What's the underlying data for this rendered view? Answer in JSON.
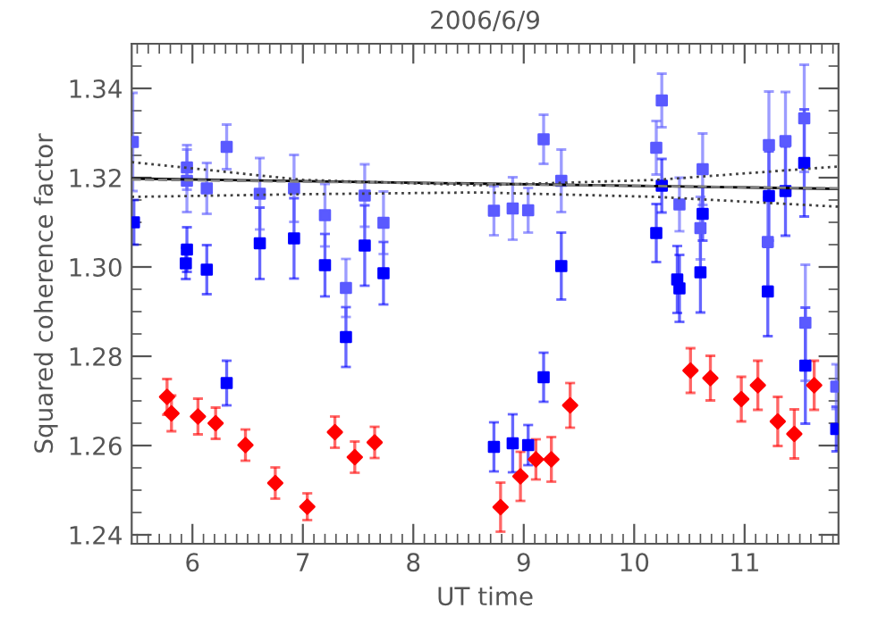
{
  "chart_data": {
    "type": "scatter",
    "title": "2006/6/9",
    "xlabel": "UT time",
    "ylabel": "Squared coherence factor",
    "xlim": [
      5.45,
      11.85
    ],
    "ylim": [
      1.238,
      1.35
    ],
    "xticks": [
      6,
      7,
      8,
      9,
      10,
      11
    ],
    "yticks": [
      {
        "value": 1.24,
        "label": "1.24"
      },
      {
        "value": 1.26,
        "label": "1.26"
      },
      {
        "value": 1.28,
        "label": "1.28"
      },
      {
        "value": 1.3,
        "label": "1.30"
      },
      {
        "value": 1.32,
        "label": "1.32"
      },
      {
        "value": 1.34,
        "label": "1.34"
      }
    ],
    "grid": false,
    "series": [
      {
        "marker": "square",
        "color": "#0000ff",
        "x": [
          5.47,
          5.94,
          5.95,
          6.13,
          6.31,
          6.61,
          6.92,
          7.2,
          7.39,
          7.56,
          7.73,
          8.73,
          8.9,
          9.04,
          9.18,
          9.34,
          10.2,
          10.25,
          10.39,
          10.41,
          10.6,
          10.62,
          11.21,
          11.22,
          11.37,
          11.54,
          11.55,
          11.83
        ],
        "values": [
          1.31,
          1.3008,
          1.3039,
          1.2994,
          1.274,
          1.3053,
          1.3064,
          1.3004,
          1.2843,
          1.3048,
          1.2986,
          1.2597,
          1.2605,
          1.2601,
          1.2753,
          1.3002,
          1.3076,
          1.3182,
          1.2972,
          1.2952,
          1.2988,
          1.3119,
          1.2945,
          1.3159,
          1.317,
          1.3233,
          1.2779,
          1.2637
        ],
        "errors": [
          0.005,
          0.0035,
          0.005,
          0.0055,
          0.005,
          0.008,
          0.009,
          0.007,
          0.0067,
          0.009,
          0.007,
          0.0055,
          0.0065,
          0.0045,
          0.0055,
          0.0075,
          0.0065,
          0.006,
          0.0075,
          0.0075,
          0.009,
          0.006,
          0.01,
          0.01,
          0.01,
          0.012,
          0.013,
          0.005
        ]
      },
      {
        "marker": "square",
        "color": "#5a5aff",
        "x": [
          5.46,
          5.95,
          5.95,
          6.13,
          6.31,
          6.61,
          6.92,
          7.2,
          7.39,
          7.56,
          7.73,
          8.73,
          8.9,
          9.04,
          9.18,
          9.34,
          10.2,
          10.25,
          10.41,
          10.6,
          10.62,
          11.21,
          11.22,
          11.37,
          11.54,
          11.55,
          11.83
        ],
        "values": [
          1.328,
          1.3223,
          1.3193,
          1.3176,
          1.3269,
          1.3164,
          1.3176,
          1.3116,
          1.2953,
          1.316,
          1.3099,
          1.3126,
          1.3131,
          1.3127,
          1.3286,
          1.3193,
          1.3267,
          1.3373,
          1.314,
          1.3087,
          1.3219,
          1.3056,
          1.3273,
          1.3282,
          1.3333,
          1.2875,
          1.2732
        ],
        "errors": [
          0.011,
          0.005,
          0.007,
          0.0057,
          0.005,
          0.008,
          0.0075,
          0.007,
          0.0065,
          0.007,
          0.007,
          0.0055,
          0.007,
          0.005,
          0.0055,
          0.007,
          0.006,
          0.006,
          0.006,
          0.007,
          0.008,
          0.01,
          0.012,
          0.011,
          0.012,
          0.013,
          0.005
        ]
      },
      {
        "marker": "diamond",
        "color": "#ff0000",
        "x": [
          5.77,
          5.81,
          6.05,
          6.21,
          6.48,
          6.75,
          7.04,
          7.29,
          7.47,
          7.65,
          8.79,
          8.97,
          9.11,
          9.25,
          9.42,
          10.51,
          10.69,
          10.97,
          11.12,
          11.3,
          11.45,
          11.63
        ],
        "values": [
          1.2709,
          1.2672,
          1.2665,
          1.265,
          1.2601,
          1.2516,
          1.2463,
          1.263,
          1.2574,
          1.2607,
          1.2462,
          1.2531,
          1.2569,
          1.2569,
          1.269,
          1.2768,
          1.2751,
          1.2704,
          1.2735,
          1.2654,
          1.2626,
          1.2735
        ],
        "errors": [
          0.004,
          0.004,
          0.004,
          0.0035,
          0.0035,
          0.0035,
          0.003,
          0.0035,
          0.0035,
          0.0035,
          0.0055,
          0.0055,
          0.0045,
          0.005,
          0.005,
          0.005,
          0.005,
          0.005,
          0.0055,
          0.0055,
          0.0055,
          0.0055
        ]
      },
      {
        "type": "line",
        "line_style": "solid",
        "color": "#000000",
        "x": [
          5.45,
          11.85
        ],
        "values": [
          1.3198,
          1.3175
        ]
      },
      {
        "type": "line",
        "line_style": "dashed",
        "color": "#808080",
        "x": [
          5.45,
          11.85
        ],
        "values": [
          1.3196,
          1.3176
        ]
      },
      {
        "type": "line",
        "line_style": "dotted",
        "color": "#404040",
        "x": [
          5.45,
          7.0,
          8.6,
          10.2,
          11.85
        ],
        "values": [
          1.3235,
          1.3195,
          1.3183,
          1.3195,
          1.3225
        ]
      },
      {
        "type": "line",
        "line_style": "dotted",
        "color": "#404040",
        "x": [
          5.45,
          7.0,
          8.6,
          10.2,
          11.85
        ],
        "values": [
          1.3157,
          1.3163,
          1.3167,
          1.3157,
          1.3135
        ]
      }
    ]
  }
}
